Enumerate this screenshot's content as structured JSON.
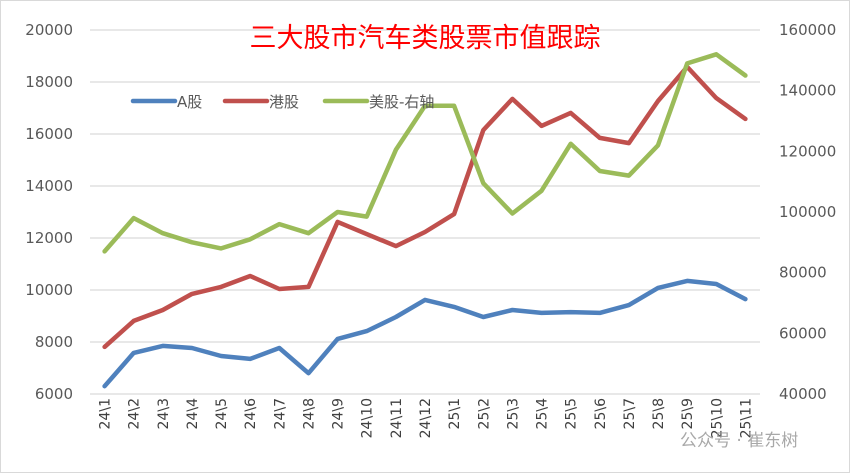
{
  "chart_data": {
    "type": "line",
    "title": "三大股市汽车类股票市值跟踪",
    "categories": [
      "24\\1",
      "24\\2",
      "24\\3",
      "24\\4",
      "24\\5",
      "24\\6",
      "24\\7",
      "24\\8",
      "24\\9",
      "24\\10",
      "24\\11",
      "24\\12",
      "25\\1",
      "25\\2",
      "25\\3",
      "25\\4",
      "25\\5",
      "25\\6",
      "25\\7",
      "25\\8",
      "25\\9",
      "25\\10",
      "25\\11"
    ],
    "y_left": {
      "min": 6000,
      "max": 20000,
      "step": 2000
    },
    "y_right": {
      "min": 40000,
      "max": 160000,
      "step": 20000
    },
    "grid": true,
    "legend_position": "top-left",
    "series": [
      {
        "name": "A股",
        "axis": "left",
        "color": "#4f81bd",
        "values": [
          6300,
          7580,
          7850,
          7770,
          7460,
          7350,
          7770,
          6800,
          8120,
          8420,
          8960,
          9620,
          9350,
          8960,
          9230,
          9120,
          9150,
          9120,
          9420,
          10080,
          10350,
          10230,
          9650
        ]
      },
      {
        "name": "港股",
        "axis": "left",
        "color": "#c0504d",
        "values": [
          7810,
          8810,
          9230,
          9850,
          10120,
          10540,
          10040,
          10120,
          12620,
          12150,
          11690,
          12230,
          12920,
          16150,
          17350,
          16310,
          16810,
          15850,
          15650,
          17270,
          18580,
          17380,
          16580
        ]
      },
      {
        "name": "美股-右轴",
        "axis": "right",
        "color": "#9bbb59",
        "values": [
          87000,
          98000,
          93000,
          90000,
          88000,
          91000,
          96000,
          93000,
          100000,
          98500,
          120500,
          135000,
          135000,
          109500,
          99500,
          107000,
          122500,
          113500,
          112000,
          122000,
          149000,
          152000,
          145000
        ]
      }
    ]
  },
  "watermark": "公众号 · 崔东树"
}
